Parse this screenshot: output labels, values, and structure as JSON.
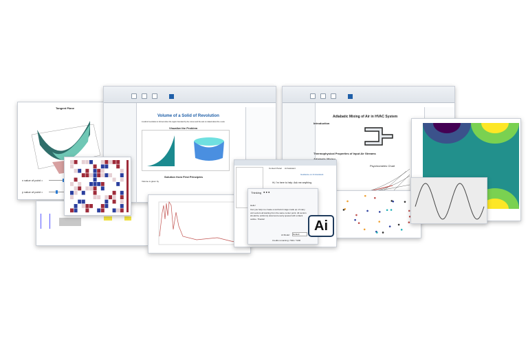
{
  "tangent_doc": {
    "title": "Tangent Plane",
    "x_label": "x value of point =",
    "y_label": "y value of point ="
  },
  "window1": {
    "title": "Volume of a Solid of Revolution",
    "section1": "Visualize the Problem",
    "section2": "Solution from First Principles",
    "intro": "A solid of revolution is formed when the region bounded by the curves and the axis is rotated about the x-axis.",
    "volume_text": "Volume is given by"
  },
  "window2": {
    "title": "Adiabatic Mixing of Air in HVAC System",
    "sections": [
      "Introduction",
      "Thermophysical Properties of Input Air Streams",
      "Adiabatic Mixing"
    ],
    "chart_title": "Psychrometric Chart"
  },
  "chat": {
    "tabs": [
      "Context Panel",
      "AI Assistant"
    ],
    "guidance_link": "Guidance on AI Assistant",
    "greeting": "Hi, I'm here to help. Ask me anything.",
    "thinking": "Thinking",
    "hello": "Hello!",
    "message": "Can you help me create a sunburst image made up of many unit vectors all starting from the same center point. All vectors should be uniformly sized and evenly spaced with a black outline. Thanks!",
    "model_label": "AI Model:",
    "model_value": "Default",
    "credits": "Credits remaining: 7044 / 7200"
  },
  "logo": {
    "text": "Ai"
  },
  "colors": {
    "accent": "#1f5fa8",
    "logo_border": "#1f3b5c",
    "plot_red": "#c0504d"
  }
}
